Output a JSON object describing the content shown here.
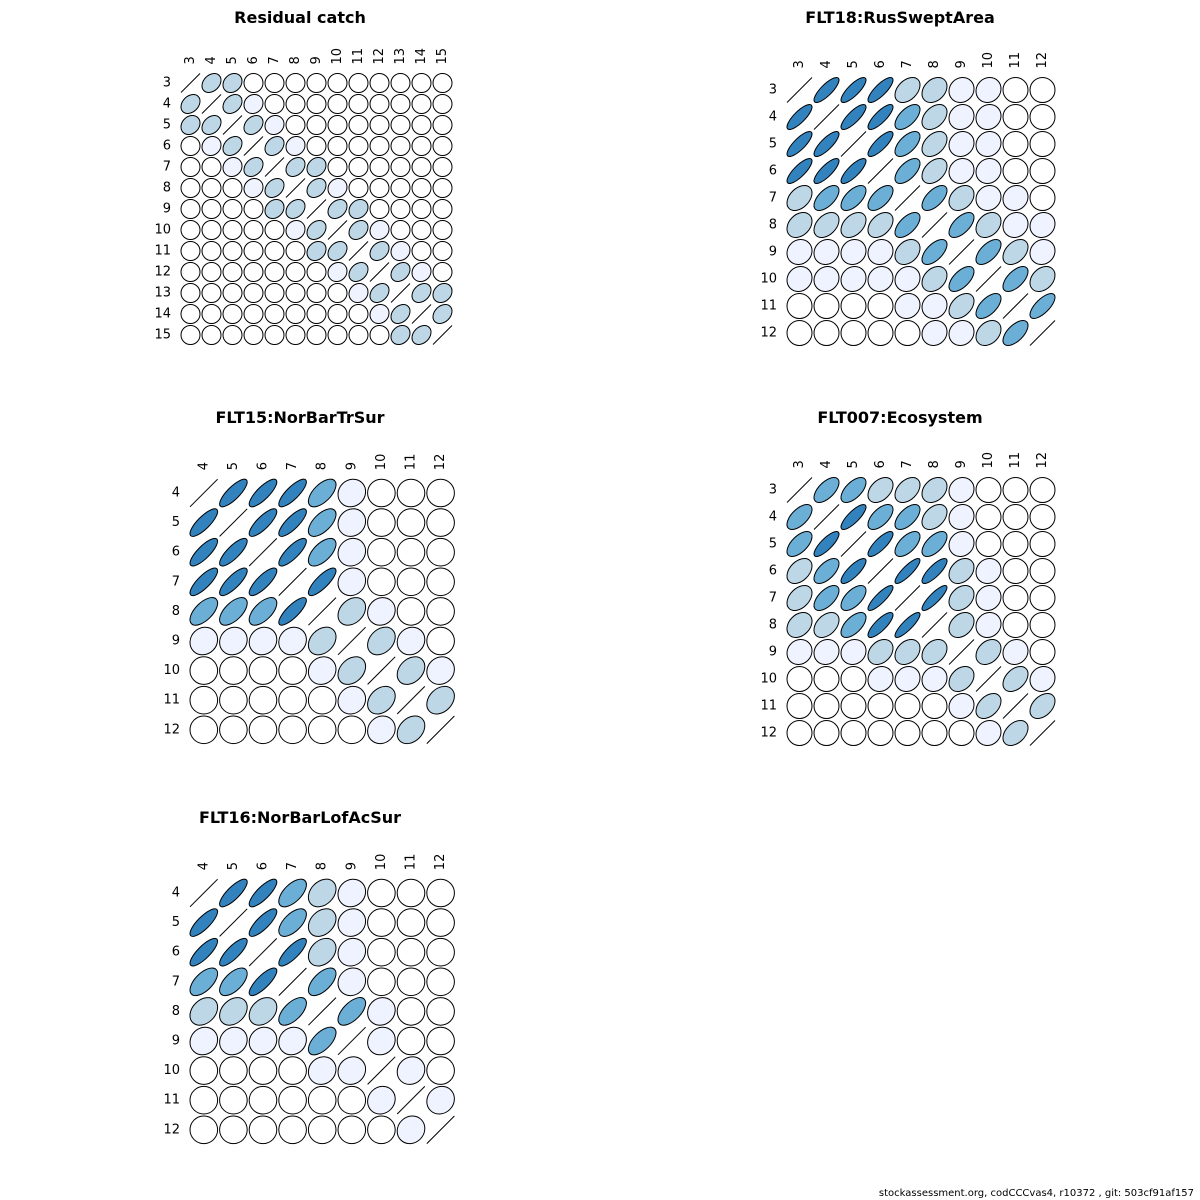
{
  "footer": "stockassessment.org, codCCCvas4, r10372 , git: 503cf91af157",
  "color_scale": [
    "#ffffff",
    "#eff3ff",
    "#bdd7e7",
    "#6baed6",
    "#3182bd"
  ],
  "chart_data": [
    {
      "type": "heatmap",
      "title": "Residual catch",
      "labels": [
        "3",
        "4",
        "5",
        "6",
        "7",
        "8",
        "9",
        "10",
        "11",
        "12",
        "13",
        "14",
        "15"
      ],
      "matrix": [
        [
          1.0,
          0.3,
          0.2,
          0.0,
          0.0,
          0.0,
          0.0,
          0.0,
          0.0,
          0.0,
          0.0,
          0.0,
          0.0
        ],
        [
          0.3,
          1.0,
          0.3,
          0.1,
          0.0,
          0.0,
          0.0,
          0.0,
          0.0,
          0.0,
          0.0,
          0.0,
          0.0
        ],
        [
          0.2,
          0.3,
          1.0,
          0.3,
          0.1,
          0.0,
          0.0,
          0.0,
          0.0,
          0.0,
          0.0,
          0.0,
          0.0
        ],
        [
          0.0,
          0.1,
          0.3,
          1.0,
          0.3,
          0.1,
          0.0,
          0.0,
          0.0,
          0.0,
          0.0,
          0.0,
          0.0
        ],
        [
          0.0,
          0.0,
          0.1,
          0.3,
          1.0,
          0.3,
          0.2,
          0.0,
          0.0,
          0.0,
          0.0,
          0.0,
          0.0
        ],
        [
          0.0,
          0.0,
          0.0,
          0.1,
          0.3,
          1.0,
          0.3,
          0.1,
          0.0,
          0.0,
          0.0,
          0.0,
          0.0
        ],
        [
          0.0,
          0.0,
          0.0,
          0.0,
          0.2,
          0.3,
          1.0,
          0.3,
          0.2,
          0.0,
          0.0,
          0.0,
          0.0
        ],
        [
          0.0,
          0.0,
          0.0,
          0.0,
          0.0,
          0.1,
          0.3,
          1.0,
          0.3,
          0.1,
          0.0,
          0.0,
          0.0
        ],
        [
          0.0,
          0.0,
          0.0,
          0.0,
          0.0,
          0.0,
          0.2,
          0.3,
          1.0,
          0.3,
          0.1,
          0.0,
          0.0
        ],
        [
          0.0,
          0.0,
          0.0,
          0.0,
          0.0,
          0.0,
          0.0,
          0.1,
          0.3,
          1.0,
          0.3,
          0.1,
          0.0
        ],
        [
          0.0,
          0.0,
          0.0,
          0.0,
          0.0,
          0.0,
          0.0,
          0.0,
          0.1,
          0.3,
          1.0,
          0.3,
          0.2
        ],
        [
          0.0,
          0.0,
          0.0,
          0.0,
          0.0,
          0.0,
          0.0,
          0.0,
          0.0,
          0.1,
          0.3,
          1.0,
          0.3
        ],
        [
          0.0,
          0.0,
          0.0,
          0.0,
          0.0,
          0.0,
          0.0,
          0.0,
          0.0,
          0.0,
          0.2,
          0.3,
          1.0
        ]
      ]
    },
    {
      "type": "heatmap",
      "title": "FLT18:RusSweptArea",
      "labels": [
        "3",
        "4",
        "5",
        "6",
        "7",
        "8",
        "9",
        "10",
        "11",
        "12"
      ],
      "matrix": [
        [
          1.0,
          0.8,
          0.8,
          0.8,
          0.4,
          0.3,
          0.1,
          0.1,
          0.0,
          0.0
        ],
        [
          0.8,
          1.0,
          0.8,
          0.8,
          0.6,
          0.4,
          0.1,
          0.1,
          0.0,
          0.0
        ],
        [
          0.8,
          0.8,
          1.0,
          0.8,
          0.6,
          0.4,
          0.1,
          0.1,
          0.0,
          0.0
        ],
        [
          0.8,
          0.8,
          0.8,
          1.0,
          0.6,
          0.4,
          0.1,
          0.1,
          0.0,
          0.0
        ],
        [
          0.4,
          0.6,
          0.6,
          0.6,
          1.0,
          0.6,
          0.3,
          0.1,
          0.1,
          0.0
        ],
        [
          0.3,
          0.4,
          0.4,
          0.4,
          0.6,
          1.0,
          0.6,
          0.3,
          0.1,
          0.1
        ],
        [
          0.1,
          0.1,
          0.1,
          0.1,
          0.3,
          0.6,
          1.0,
          0.6,
          0.4,
          0.1
        ],
        [
          0.1,
          0.1,
          0.1,
          0.1,
          0.1,
          0.3,
          0.6,
          1.0,
          0.6,
          0.3
        ],
        [
          0.0,
          0.0,
          0.0,
          0.0,
          0.1,
          0.1,
          0.4,
          0.6,
          1.0,
          0.7
        ],
        [
          0.0,
          0.0,
          0.0,
          0.0,
          0.0,
          0.1,
          0.1,
          0.3,
          0.6,
          1.0
        ]
      ]
    },
    {
      "type": "heatmap",
      "title": "FLT15:NorBarTrSur",
      "labels": [
        "4",
        "5",
        "6",
        "7",
        "8",
        "9",
        "10",
        "11",
        "12"
      ],
      "matrix": [
        [
          1.0,
          0.8,
          0.8,
          0.8,
          0.6,
          0.1,
          0.0,
          0.0,
          0.0
        ],
        [
          0.8,
          1.0,
          0.8,
          0.8,
          0.6,
          0.1,
          0.0,
          0.0,
          0.0
        ],
        [
          0.8,
          0.8,
          1.0,
          0.8,
          0.6,
          0.1,
          0.0,
          0.0,
          0.0
        ],
        [
          0.8,
          0.8,
          0.8,
          1.0,
          0.8,
          0.1,
          0.0,
          0.0,
          0.0
        ],
        [
          0.6,
          0.6,
          0.6,
          0.8,
          1.0,
          0.3,
          0.1,
          0.0,
          0.0
        ],
        [
          0.1,
          0.1,
          0.1,
          0.1,
          0.3,
          1.0,
          0.3,
          0.1,
          0.0
        ],
        [
          0.0,
          0.0,
          0.0,
          0.0,
          0.1,
          0.3,
          1.0,
          0.3,
          0.1
        ],
        [
          0.0,
          0.0,
          0.0,
          0.0,
          0.0,
          0.1,
          0.3,
          1.0,
          0.3
        ],
        [
          0.0,
          0.0,
          0.0,
          0.0,
          0.0,
          0.0,
          0.1,
          0.3,
          1.0
        ]
      ]
    },
    {
      "type": "heatmap",
      "title": "FLT007:Ecosystem",
      "labels": [
        "3",
        "4",
        "5",
        "6",
        "7",
        "8",
        "9",
        "10",
        "11",
        "12"
      ],
      "matrix": [
        [
          1.0,
          0.6,
          0.6,
          0.4,
          0.4,
          0.3,
          0.1,
          0.0,
          0.0,
          0.0
        ],
        [
          0.6,
          1.0,
          0.8,
          0.6,
          0.6,
          0.4,
          0.1,
          0.0,
          0.0,
          0.0
        ],
        [
          0.6,
          0.8,
          1.0,
          0.8,
          0.6,
          0.6,
          0.1,
          0.0,
          0.0,
          0.0
        ],
        [
          0.4,
          0.6,
          0.8,
          1.0,
          0.85,
          0.8,
          0.3,
          0.1,
          0.0,
          0.0
        ],
        [
          0.4,
          0.6,
          0.6,
          0.85,
          1.0,
          0.85,
          0.3,
          0.1,
          0.0,
          0.0
        ],
        [
          0.3,
          0.4,
          0.6,
          0.8,
          0.85,
          1.0,
          0.3,
          0.1,
          0.0,
          0.0
        ],
        [
          0.1,
          0.1,
          0.1,
          0.3,
          0.3,
          0.3,
          1.0,
          0.3,
          0.1,
          0.0
        ],
        [
          0.0,
          0.0,
          0.0,
          0.1,
          0.1,
          0.1,
          0.3,
          1.0,
          0.4,
          0.1
        ],
        [
          0.0,
          0.0,
          0.0,
          0.0,
          0.0,
          0.0,
          0.1,
          0.4,
          1.0,
          0.4
        ],
        [
          0.0,
          0.0,
          0.0,
          0.0,
          0.0,
          0.0,
          0.0,
          0.1,
          0.4,
          1.0
        ]
      ]
    },
    {
      "type": "heatmap",
      "title": "FLT16:NorBarLofAcSur",
      "labels": [
        "4",
        "5",
        "6",
        "7",
        "8",
        "9",
        "10",
        "11",
        "12"
      ],
      "matrix": [
        [
          1.0,
          0.8,
          0.8,
          0.6,
          0.3,
          0.1,
          0.0,
          0.0,
          0.0
        ],
        [
          0.8,
          1.0,
          0.8,
          0.6,
          0.3,
          0.1,
          0.0,
          0.0,
          0.0
        ],
        [
          0.8,
          0.8,
          1.0,
          0.8,
          0.3,
          0.1,
          0.0,
          0.0,
          0.0
        ],
        [
          0.6,
          0.6,
          0.8,
          1.0,
          0.6,
          0.1,
          0.0,
          0.0,
          0.0
        ],
        [
          0.3,
          0.3,
          0.3,
          0.6,
          1.0,
          0.6,
          0.1,
          0.0,
          0.0
        ],
        [
          0.1,
          0.1,
          0.1,
          0.1,
          0.6,
          1.0,
          0.1,
          0.0,
          0.0
        ],
        [
          0.0,
          0.0,
          0.0,
          0.0,
          0.1,
          0.1,
          1.0,
          0.1,
          0.0
        ],
        [
          0.0,
          0.0,
          0.0,
          0.0,
          0.0,
          0.0,
          0.1,
          1.0,
          0.1
        ],
        [
          0.0,
          0.0,
          0.0,
          0.0,
          0.0,
          0.0,
          0.0,
          0.1,
          1.0
        ]
      ]
    }
  ]
}
